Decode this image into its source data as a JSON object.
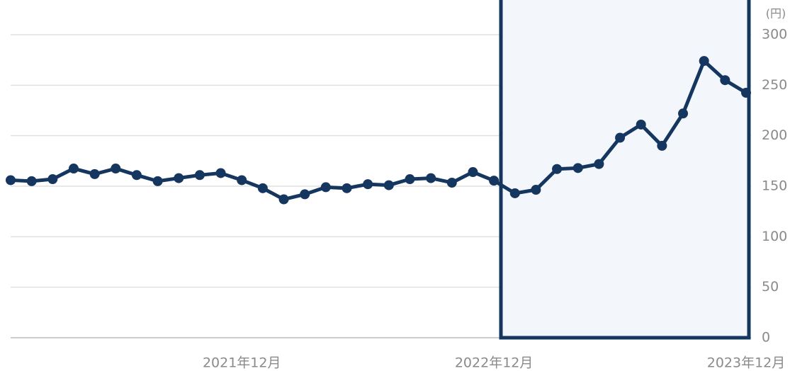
{
  "chart_data": {
    "type": "line",
    "unit_label": "(円)",
    "categories": [
      null,
      null,
      null,
      null,
      null,
      null,
      null,
      null,
      null,
      null,
      null,
      "2021年12月",
      null,
      null,
      null,
      null,
      null,
      null,
      null,
      null,
      null,
      null,
      null,
      "2022年12月",
      null,
      null,
      null,
      null,
      null,
      null,
      null,
      null,
      null,
      null,
      null,
      "2023年12月"
    ],
    "series": [
      {
        "color": "#15365f",
        "values": [
          156,
          155,
          157,
          167.5,
          162,
          167.5,
          161,
          155,
          158,
          161,
          163,
          156,
          148,
          137,
          142,
          149,
          148,
          152,
          151,
          157,
          158,
          153.5,
          164,
          155.5,
          143,
          146.5,
          167,
          168,
          172,
          198,
          211,
          190,
          222,
          274,
          255,
          242.5
        ]
      }
    ],
    "ylim": [
      0,
      300
    ],
    "yticks": [
      0,
      50,
      100,
      150,
      200,
      250,
      300
    ],
    "grid": true
  }
}
